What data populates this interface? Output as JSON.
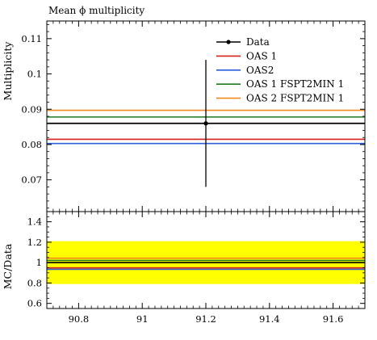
{
  "chart_data": {
    "type": "line",
    "title": "Mean ϕ multiplicity",
    "main": {
      "ylabel": "Multiplicity",
      "xlim": [
        90.7,
        91.7
      ],
      "ylim": [
        0.061,
        0.115
      ],
      "yticks": [
        0.07,
        0.08,
        0.09,
        0.1,
        0.11
      ],
      "ytick_labels": [
        "0.07",
        "0.08",
        "0.09",
        "0.1",
        "0.11"
      ],
      "legend_position": "top-right",
      "data": {
        "name": "Data",
        "x": 91.2,
        "y": 0.086,
        "yerr_low": 0.068,
        "yerr_high": 0.104,
        "color": "#000000"
      },
      "series": [
        {
          "name": "OAS 1",
          "value": 0.0815,
          "color": "#d61f1f"
        },
        {
          "name": "OAS2",
          "value": 0.0803,
          "color": "#2b5fd9"
        },
        {
          "name": "OAS 1 FSPT2MIN 1",
          "value": 0.0878,
          "color": "#1d7a1d"
        },
        {
          "name": "OAS 2 FSPT2MIN 1",
          "value": 0.0897,
          "color": "#f08a1c"
        }
      ]
    },
    "ratio": {
      "ylabel": "MC/Data",
      "ylim": [
        0.55,
        1.5
      ],
      "yticks": [
        0.6,
        0.8,
        1.0,
        1.2,
        1.4
      ],
      "ytick_labels": [
        "0.6",
        "0.8",
        "1",
        "1.2",
        "1.4"
      ],
      "band": [
        0.79,
        1.21
      ],
      "band_color": "#ffff00",
      "reference": 1.0,
      "ratios": [
        {
          "name": "OAS 1",
          "value": 0.948,
          "color": "#d61f1f"
        },
        {
          "name": "OAS2",
          "value": 0.934,
          "color": "#2b5fd9"
        },
        {
          "name": "OAS 1 FSPT2MIN 1",
          "value": 1.021,
          "color": "#1d7a1d"
        },
        {
          "name": "OAS 2 FSPT2MIN 1",
          "value": 1.043,
          "color": "#f08a1c"
        }
      ]
    },
    "xticks": [
      90.8,
      91.0,
      91.2,
      91.4,
      91.6
    ],
    "xtick_labels": [
      "90.8",
      "91",
      "91.2",
      "91.4",
      "91.6"
    ]
  }
}
